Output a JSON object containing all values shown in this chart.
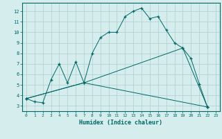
{
  "xlabel": "Humidex (Indice chaleur)",
  "bg_color": "#d5eeed",
  "grid_color": "#b0cccc",
  "line_color": "#006666",
  "curve1_x": [
    0,
    1,
    2,
    3,
    4,
    5,
    6,
    7,
    8,
    9,
    10,
    11,
    12,
    13,
    14,
    15,
    16,
    17,
    18,
    19,
    20,
    21,
    22
  ],
  "curve1_y": [
    3.7,
    3.4,
    3.3,
    5.5,
    7.0,
    5.2,
    7.2,
    5.2,
    8.0,
    9.5,
    10.0,
    10.0,
    11.5,
    12.0,
    12.3,
    11.3,
    11.5,
    10.2,
    9.0,
    8.5,
    7.5,
    5.1,
    2.9
  ],
  "curve2_x": [
    0,
    7,
    22
  ],
  "curve2_y": [
    3.7,
    5.2,
    2.9
  ],
  "curve3_x": [
    0,
    7,
    19,
    22
  ],
  "curve3_y": [
    3.7,
    5.2,
    8.5,
    2.9
  ],
  "xlim": [
    -0.5,
    23.5
  ],
  "ylim": [
    2.5,
    12.8
  ],
  "yticks": [
    3,
    4,
    5,
    6,
    7,
    8,
    9,
    10,
    11,
    12
  ],
  "xticks": [
    0,
    1,
    2,
    3,
    4,
    5,
    6,
    7,
    8,
    9,
    10,
    11,
    12,
    13,
    14,
    15,
    16,
    17,
    18,
    19,
    20,
    21,
    22,
    23
  ]
}
